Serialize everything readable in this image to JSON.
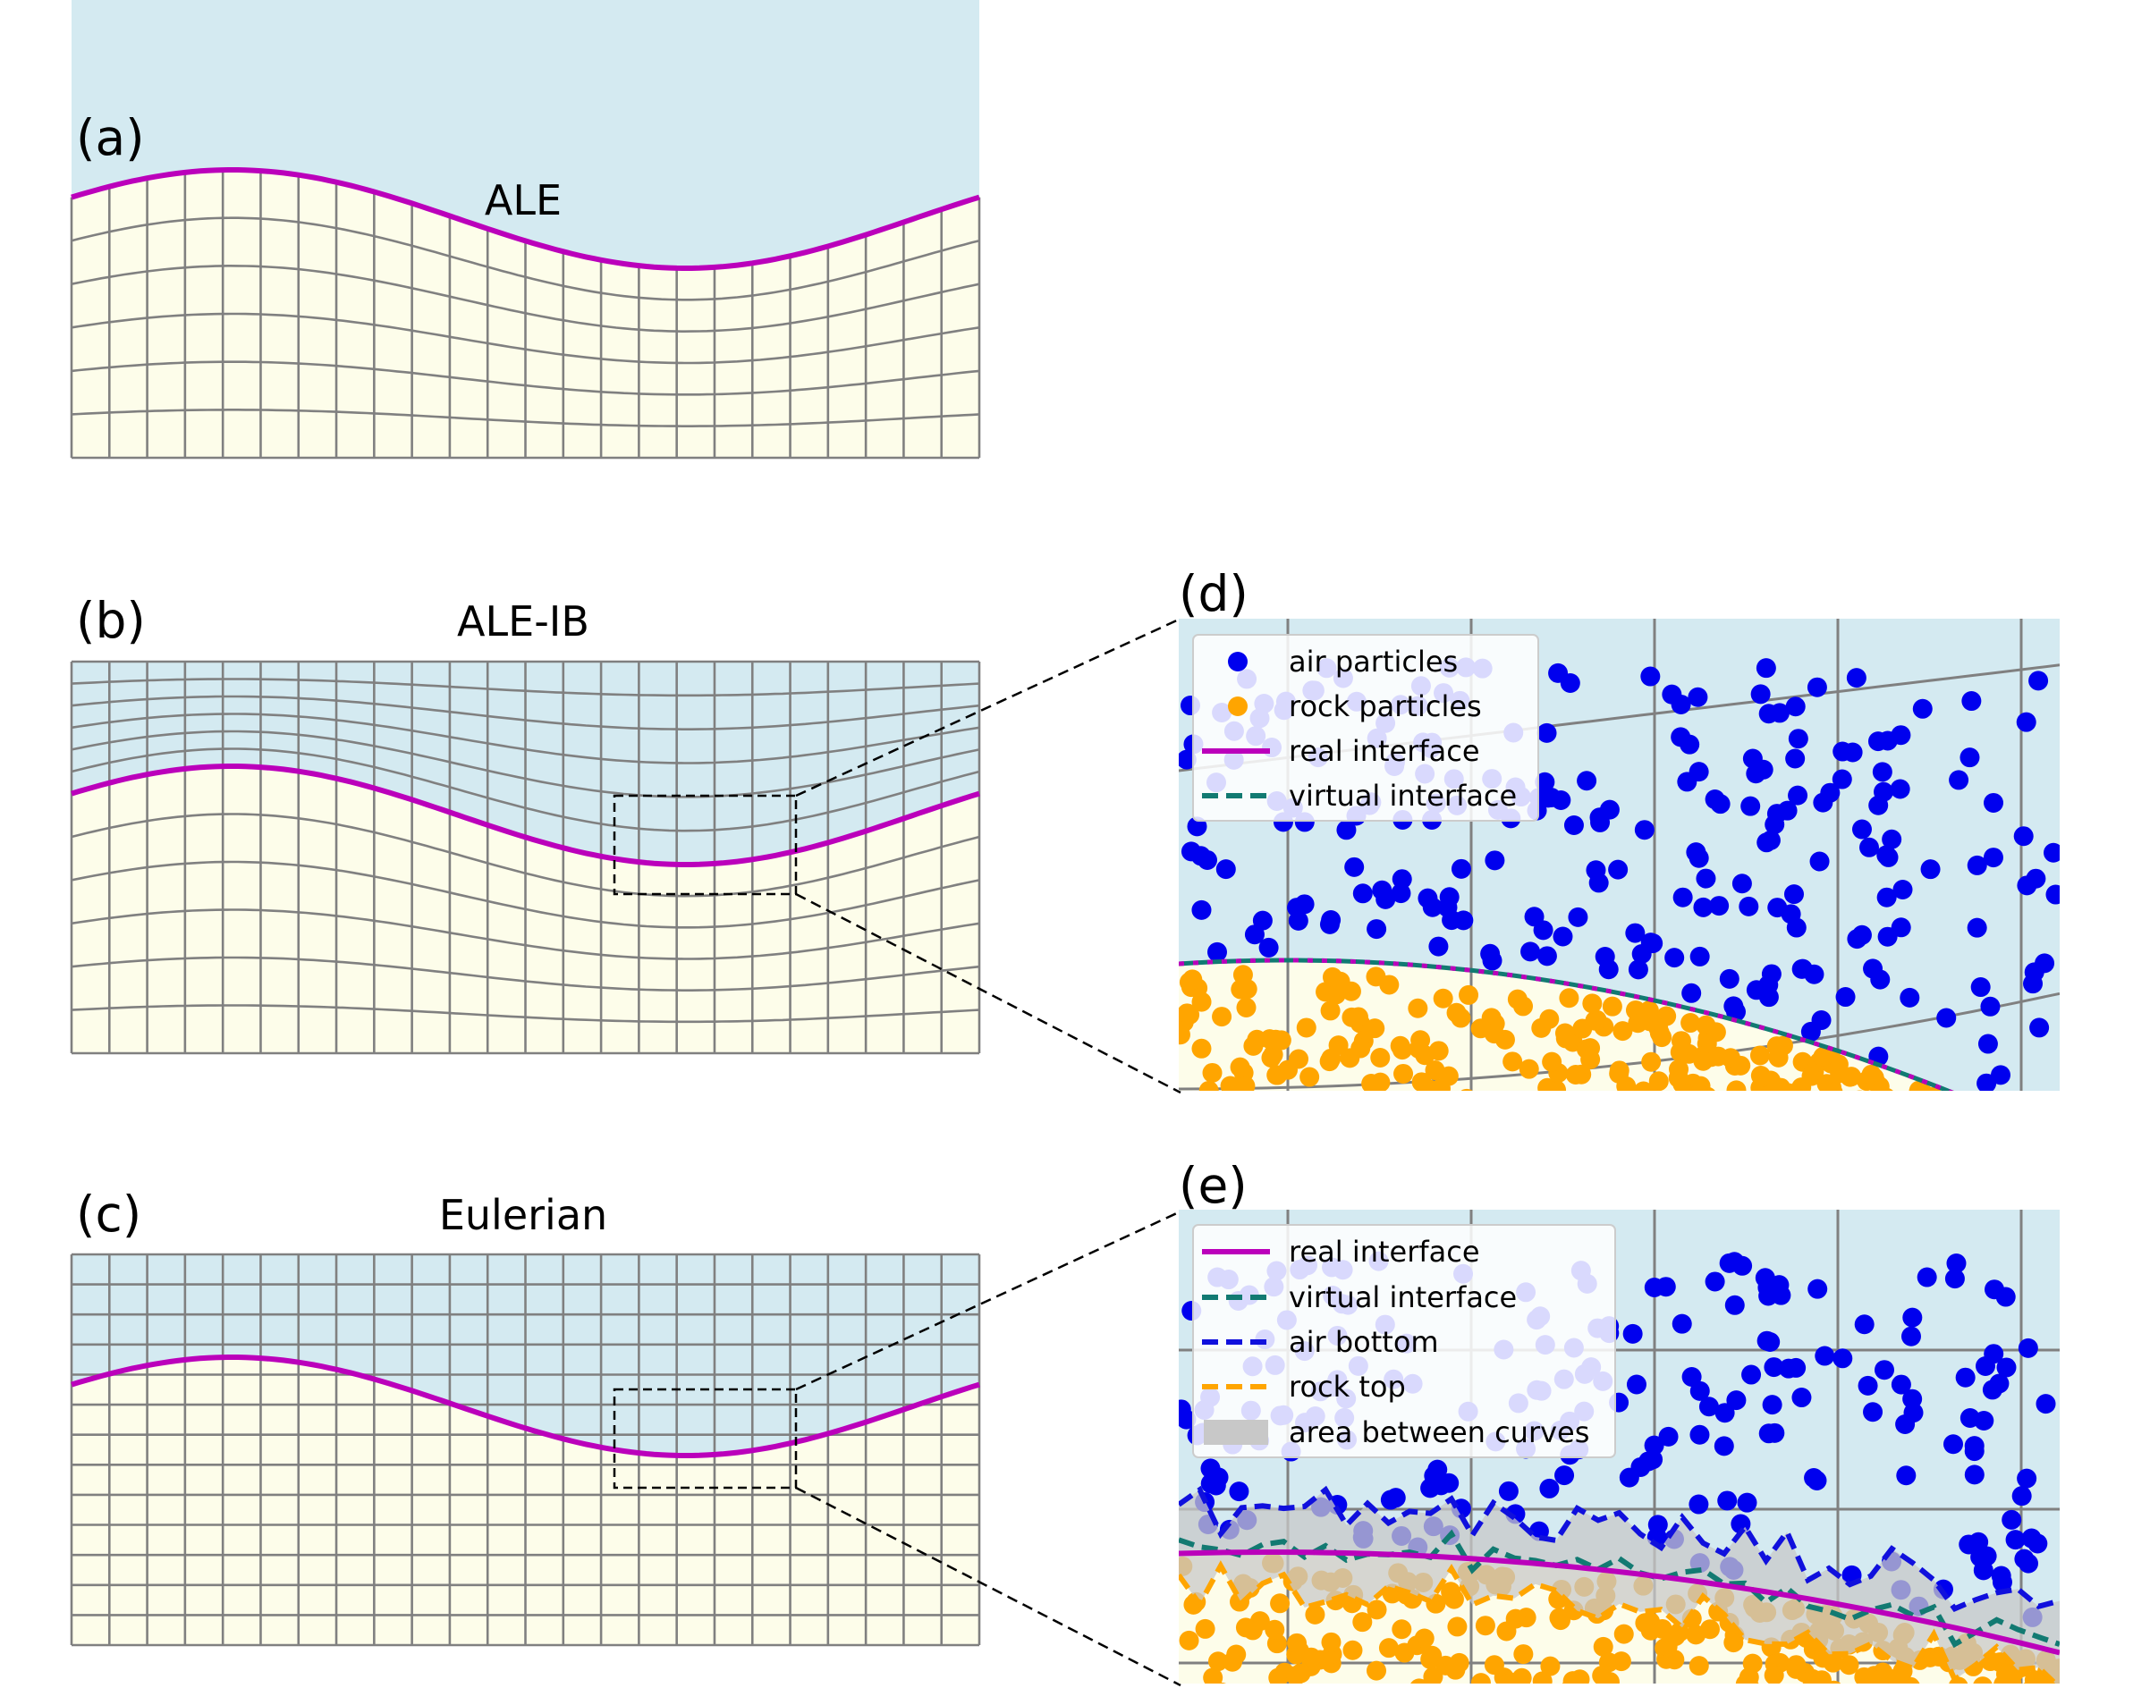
{
  "panels": {
    "a": {
      "tag": "(a)",
      "title": "ALE"
    },
    "b": {
      "tag": "(b)",
      "title": "ALE-IB"
    },
    "c": {
      "tag": "(c)",
      "title": "Eulerian"
    },
    "d": {
      "tag": "(d)"
    },
    "e": {
      "tag": "(e)"
    }
  },
  "legend_d": [
    "air particles",
    "rock particles",
    "real interface",
    "virtual interface"
  ],
  "legend_e": [
    "real interface",
    "virtual interface",
    "air bottom",
    "rock top",
    "area between curves"
  ],
  "colors": {
    "air_fill": "#d4eaf1",
    "rock_fill": "#fdfdea",
    "grid_line": "#808080",
    "real_interface": "#bb00bb",
    "virtual_interface": "#127a72",
    "air_particles": "#0000ee",
    "rock_particles": "#ffa500",
    "air_bottom": "#1010dd",
    "rock_top": "#ffa500",
    "area_between": "#c8c8c8"
  }
}
